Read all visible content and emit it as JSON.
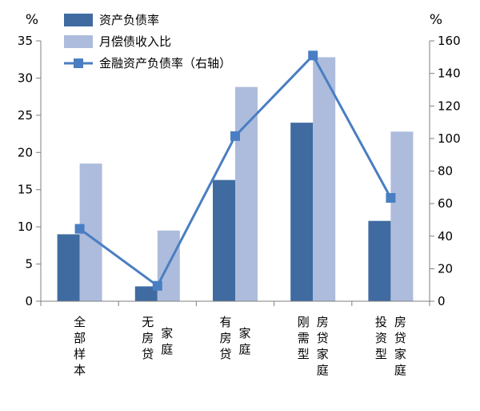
{
  "chart_data": {
    "type": "bar",
    "categories": [
      {
        "label": "全部样本",
        "columns": [
          "全部样本"
        ]
      },
      {
        "label": "无房贷家庭",
        "columns": [
          "无房贷",
          "家庭"
        ]
      },
      {
        "label": "有房贷家庭",
        "columns": [
          "有房贷",
          "家庭"
        ]
      },
      {
        "label": "刚需型房贷家庭",
        "columns": [
          "刚需型",
          "房贷家庭"
        ]
      },
      {
        "label": "投资型房贷家庭",
        "columns": [
          "投资型",
          "房贷家庭"
        ]
      }
    ],
    "series": [
      {
        "name": "资产负债率",
        "kind": "bar",
        "axis": "left",
        "color": "#3f6ba1",
        "values": [
          9,
          2,
          16.3,
          24,
          10.8
        ]
      },
      {
        "name": "月偿债收入比",
        "kind": "bar",
        "axis": "left",
        "color": "#adbcdc",
        "values": [
          18.5,
          9.5,
          28.8,
          32.8,
          22.8
        ]
      },
      {
        "name": "金融资产负债率（右轴）",
        "kind": "line",
        "axis": "right",
        "color": "#4a7ec2",
        "values": [
          44.5,
          9.5,
          101.5,
          151,
          63.5
        ]
      }
    ],
    "left_axis": {
      "unit": "%",
      "min": 0,
      "max": 35,
      "step": 5,
      "ticks": [
        "0",
        "5",
        "10",
        "15",
        "20",
        "25",
        "30",
        "35"
      ]
    },
    "right_axis": {
      "unit": "%",
      "min": 0,
      "max": 160,
      "step": 20,
      "ticks": [
        "0",
        "20",
        "40",
        "60",
        "80",
        "100",
        "120",
        "140",
        "160"
      ]
    },
    "legend": {
      "position": "top-left"
    },
    "grid": false
  }
}
